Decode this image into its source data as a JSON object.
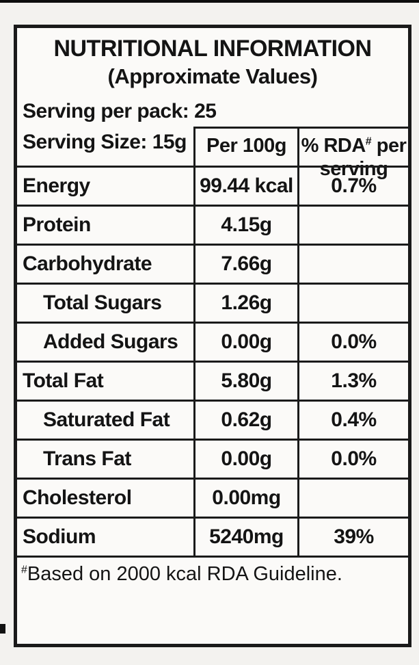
{
  "label": {
    "title": "NUTRITIONAL INFORMATION",
    "subtitle": "(Approximate Values)",
    "serving_per_pack": "Serving per pack: 25",
    "columns": {
      "serving_size": "Serving Size: 15g",
      "per_100g": "Per 100g",
      "rda_prefix": "% RDA",
      "rda_sup": "#",
      "rda_suffix": " per serving"
    },
    "rows": [
      {
        "nutrient": "Energy",
        "per_100g": "99.44 kcal",
        "rda": "0.7%",
        "indent": false
      },
      {
        "nutrient": "Protein",
        "per_100g": "4.15g",
        "rda": "",
        "indent": false
      },
      {
        "nutrient": "Carbohydrate",
        "per_100g": "7.66g",
        "rda": "",
        "indent": false
      },
      {
        "nutrient": "Total Sugars",
        "per_100g": "1.26g",
        "rda": "",
        "indent": true
      },
      {
        "nutrient": "Added Sugars",
        "per_100g": "0.00g",
        "rda": "0.0%",
        "indent": true
      },
      {
        "nutrient": "Total Fat",
        "per_100g": "5.80g",
        "rda": "1.3%",
        "indent": false
      },
      {
        "nutrient": "Saturated Fat",
        "per_100g": "0.62g",
        "rda": "0.4%",
        "indent": true
      },
      {
        "nutrient": "Trans Fat",
        "per_100g": "0.00g",
        "rda": "0.0%",
        "indent": true
      },
      {
        "nutrient": "Cholesterol",
        "per_100g": "0.00mg",
        "rda": "",
        "indent": false
      },
      {
        "nutrient": "Sodium",
        "per_100g": "5240mg",
        "rda": "39%",
        "indent": false
      }
    ],
    "footnote_sup": "#",
    "footnote_text": "Based on 2000 kcal RDA Guideline."
  },
  "colors": {
    "border": "#1a1a1a",
    "text": "#141414",
    "paper": "#fbfaf8",
    "page_bg": "#f3f2ef"
  }
}
